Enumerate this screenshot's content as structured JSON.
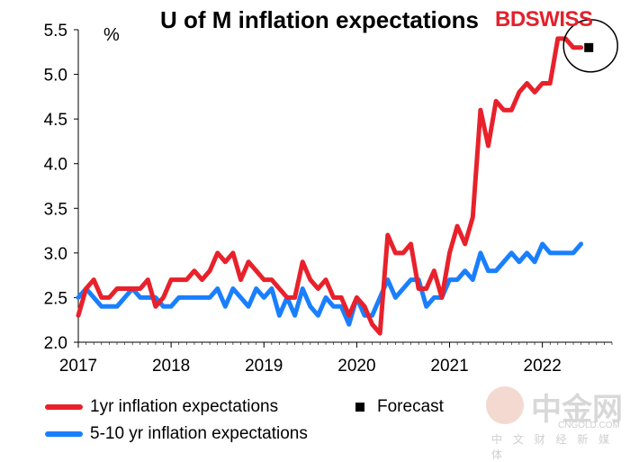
{
  "brand": {
    "bd": "BD",
    "swiss": "SWISS"
  },
  "watermark": {
    "cn": "中金网",
    "en": "CNGOLD.COM",
    "sub": "中 文 财 经 新 媒 体"
  },
  "colors": {
    "series1": "#e8212b",
    "series2": "#1a7fff",
    "axis": "#000000",
    "forecast": "#000000"
  },
  "chart_data": {
    "type": "line",
    "title": "U of M inflation expectations",
    "unit_label": "%",
    "xlabel": "",
    "ylabel": "%",
    "xlim": [
      2017,
      2022.75
    ],
    "ylim": [
      2.0,
      5.5
    ],
    "y_ticks": [
      "2.0",
      "2.5",
      "3.0",
      "3.5",
      "4.0",
      "4.5",
      "5.0",
      "5.5"
    ],
    "y_tick_values": [
      2.0,
      2.5,
      3.0,
      3.5,
      4.0,
      4.5,
      5.0,
      5.5
    ],
    "x_ticks": [
      "2017",
      "2018",
      "2019",
      "2020",
      "2021",
      "2022"
    ],
    "x_tick_values": [
      2017,
      2018,
      2019,
      2020,
      2021,
      2022
    ],
    "series": [
      {
        "name": "1yr inflation expectations",
        "color": "#e8212b",
        "start": 2017.0,
        "step": 0.083333,
        "values": [
          2.3,
          2.6,
          2.7,
          2.5,
          2.5,
          2.6,
          2.6,
          2.6,
          2.6,
          2.7,
          2.4,
          2.5,
          2.7,
          2.7,
          2.7,
          2.8,
          2.7,
          2.8,
          3.0,
          2.9,
          3.0,
          2.7,
          2.9,
          2.8,
          2.7,
          2.7,
          2.6,
          2.5,
          2.5,
          2.9,
          2.7,
          2.6,
          2.7,
          2.5,
          2.5,
          2.3,
          2.5,
          2.4,
          2.2,
          2.1,
          3.2,
          3.0,
          3.0,
          3.1,
          2.6,
          2.6,
          2.8,
          2.5,
          3.0,
          3.3,
          3.1,
          3.4,
          4.6,
          4.2,
          4.7,
          4.6,
          4.6,
          4.8,
          4.9,
          4.8,
          4.9,
          4.9,
          5.4,
          5.4,
          5.3,
          5.3
        ]
      },
      {
        "name": "5-10 yr inflation expectations",
        "color": "#1a7fff",
        "start": 2017.0,
        "step": 0.083333,
        "values": [
          2.5,
          2.6,
          2.5,
          2.4,
          2.4,
          2.4,
          2.5,
          2.6,
          2.5,
          2.5,
          2.5,
          2.4,
          2.4,
          2.5,
          2.5,
          2.5,
          2.5,
          2.5,
          2.6,
          2.4,
          2.6,
          2.5,
          2.4,
          2.6,
          2.5,
          2.6,
          2.3,
          2.5,
          2.3,
          2.6,
          2.4,
          2.3,
          2.5,
          2.4,
          2.4,
          2.2,
          2.5,
          2.3,
          2.3,
          2.5,
          2.7,
          2.5,
          2.6,
          2.7,
          2.7,
          2.4,
          2.5,
          2.5,
          2.7,
          2.7,
          2.8,
          2.7,
          3.0,
          2.8,
          2.8,
          2.9,
          3.0,
          2.9,
          3.0,
          2.9,
          3.1,
          3.0,
          3.0,
          3.0,
          3.0,
          3.1
        ]
      }
    ],
    "forecast": {
      "name": "Forecast",
      "x": 2022.5,
      "y": 5.3
    },
    "legend": [
      "1yr inflation expectations",
      "Forecast",
      "5-10 yr inflation expectations"
    ]
  }
}
